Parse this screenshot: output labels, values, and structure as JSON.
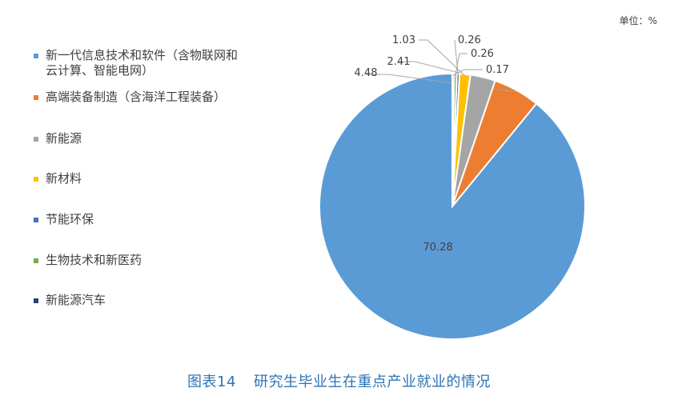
{
  "unit_label": "单位：%",
  "caption": {
    "number": "图表14",
    "title": "研究生毕业生在重点产业就业的情况"
  },
  "chart_data": {
    "type": "pie",
    "title": "",
    "legend_position": "left",
    "slices": [
      {
        "name": "新一代信息技术和软件（含物联网和\n云计算、智能电网）",
        "value": 70.28,
        "color": "#5b9bd5"
      },
      {
        "name": "高端装备制造（含海洋工程装备）",
        "value": 4.48,
        "color": "#ed7d31"
      },
      {
        "name": "新能源",
        "value": 2.41,
        "color": "#a5a5a5"
      },
      {
        "name": "新材料",
        "value": 1.03,
        "color": "#ffc000"
      },
      {
        "name": "节能环保",
        "value": 0.26,
        "color": "#4472c4"
      },
      {
        "name": "生物技术和新医药",
        "value": 0.26,
        "color": "#70ad47"
      },
      {
        "name": "新能源汽车",
        "value": 0.17,
        "color": "#264478"
      }
    ]
  }
}
